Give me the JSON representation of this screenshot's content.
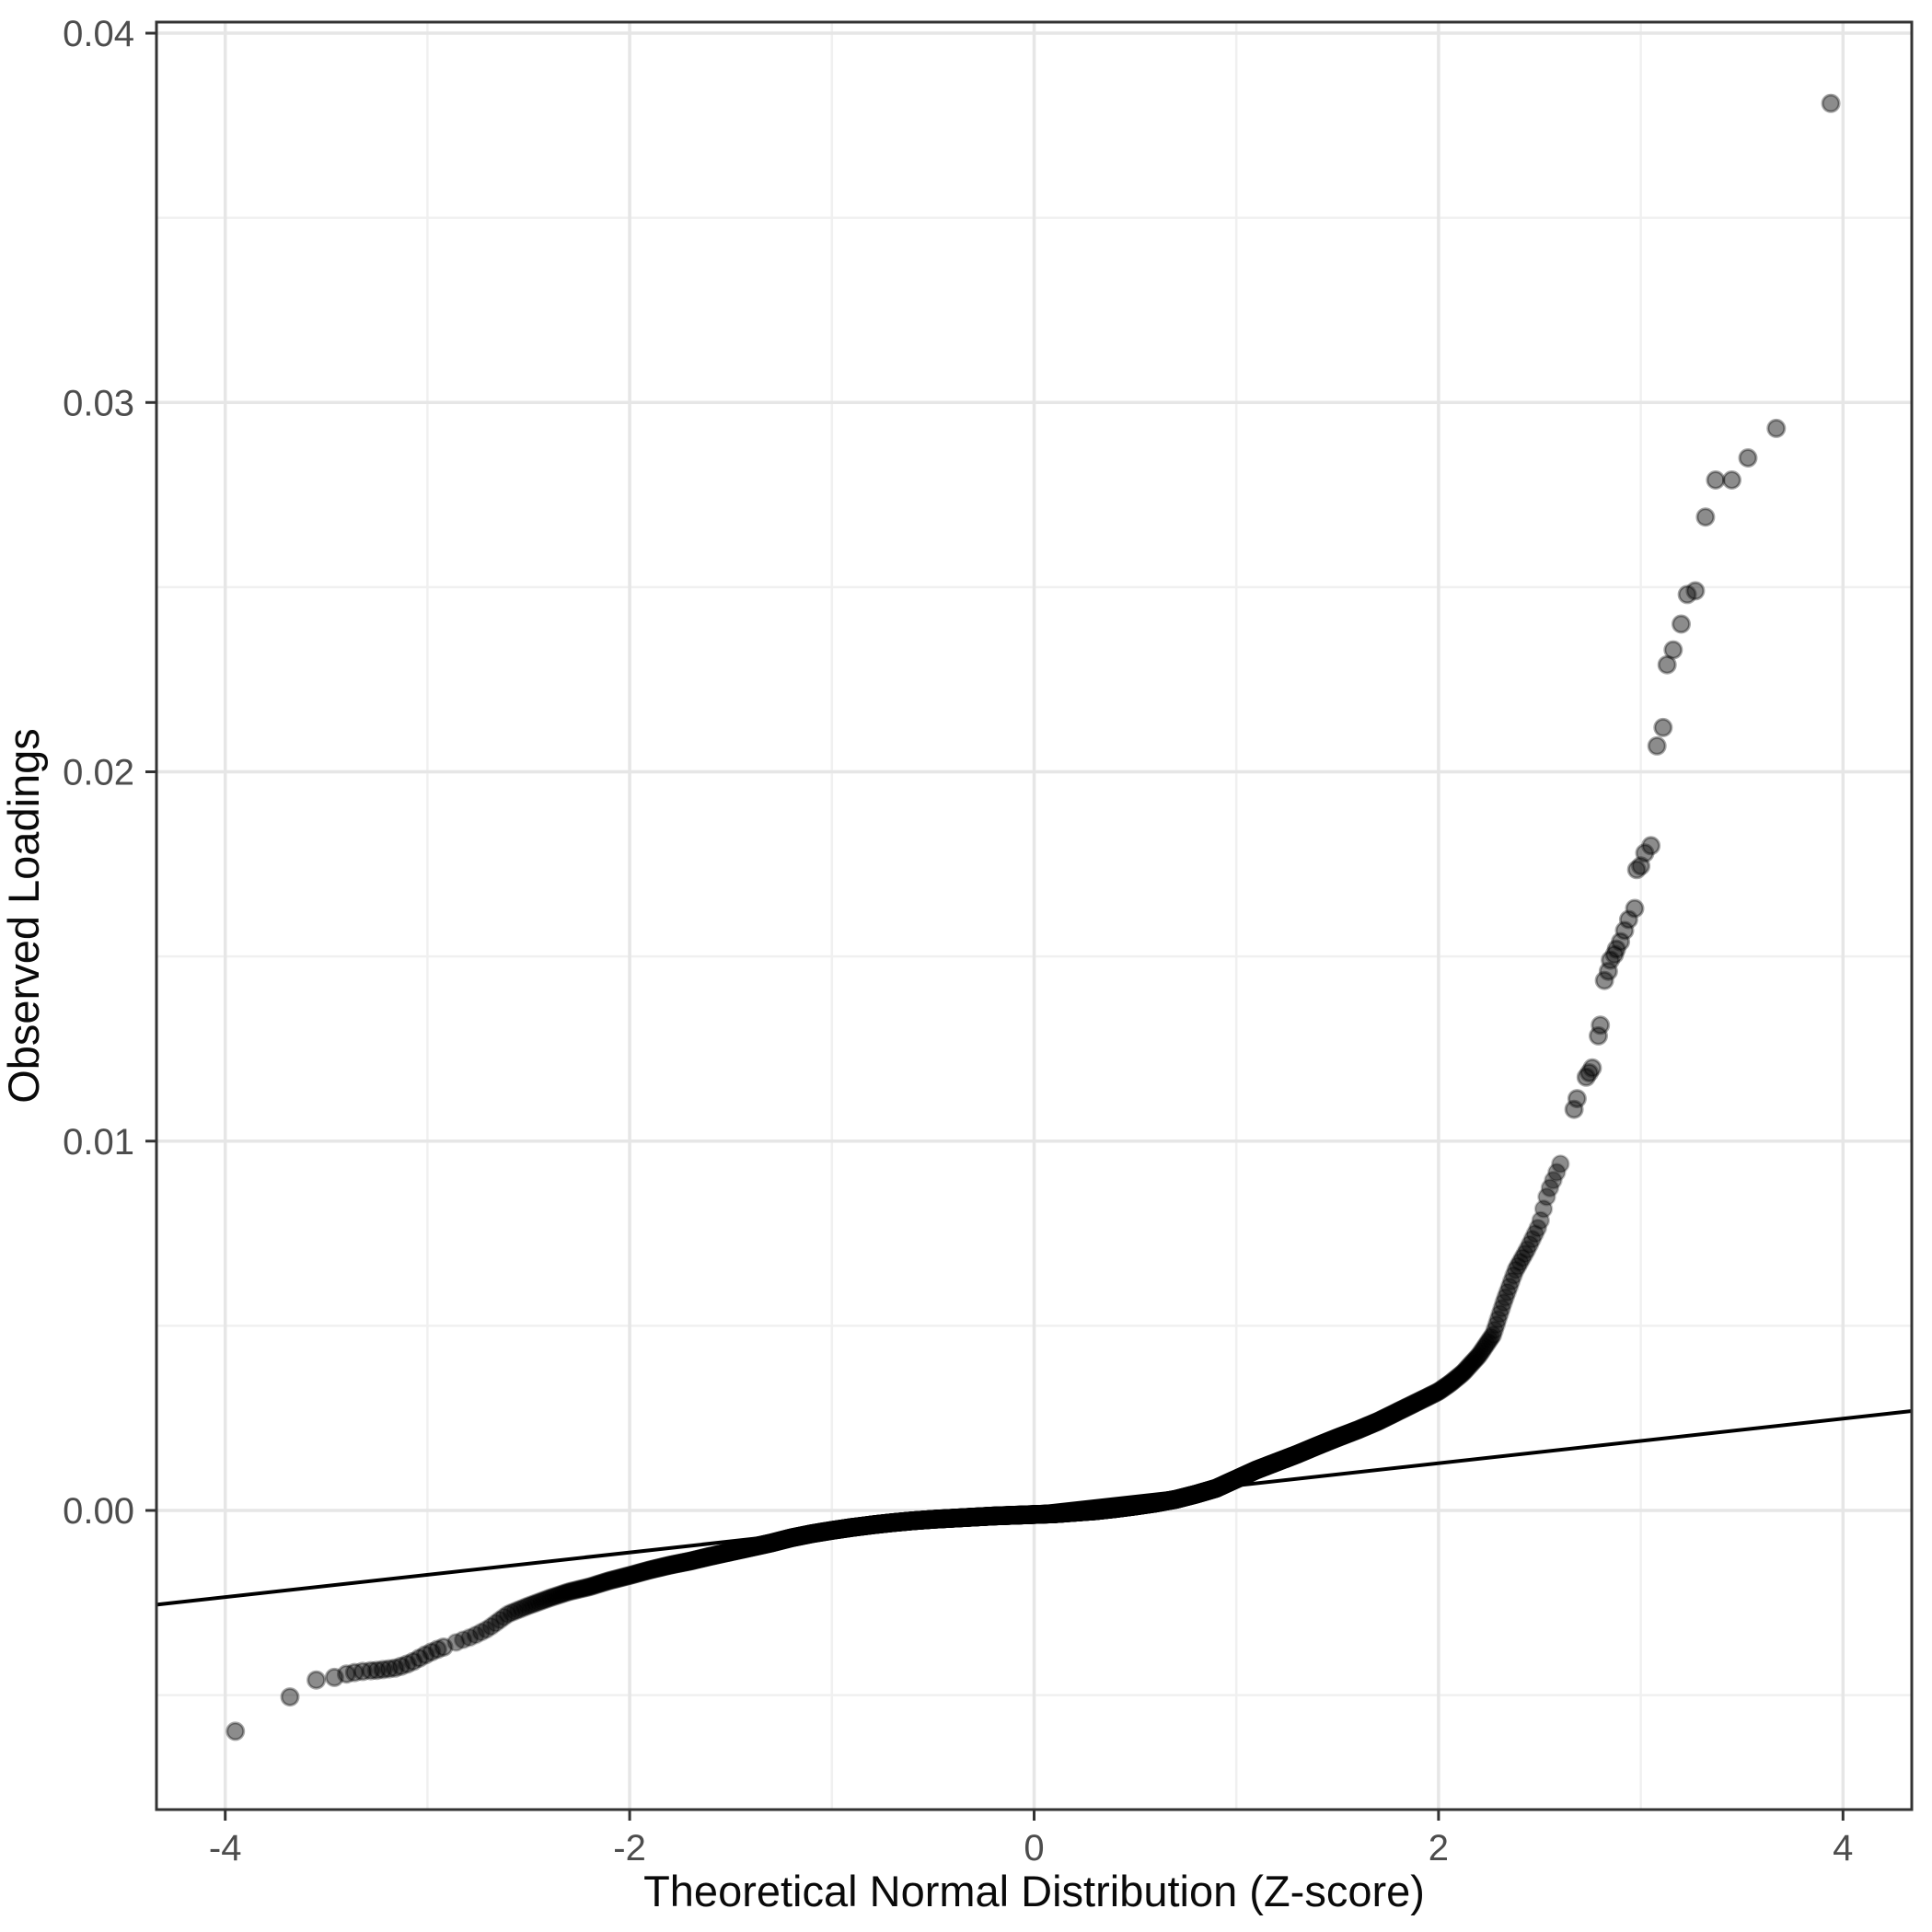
{
  "figure": {
    "kind": "qq-plot",
    "background": "#ffffff"
  },
  "chart_data": {
    "type": "scatter",
    "title": "",
    "xlabel": "Theoretical Normal Distribution (Z-score)",
    "ylabel": "Observed Loadings",
    "xlim": [
      -4.34,
      4.34
    ],
    "ylim": [
      -0.0081,
      0.0403
    ],
    "grid": "major+minor",
    "legend": false,
    "x_ticks": [
      -4,
      -2,
      0,
      2,
      4
    ],
    "x_tick_labels": [
      "-4",
      "-2",
      "0",
      "2",
      "4"
    ],
    "x_minor_ticks": [
      -3,
      -1,
      1,
      3
    ],
    "y_ticks": [
      0,
      0.01,
      0.02,
      0.03,
      0.04
    ],
    "y_tick_labels": [
      "0.00",
      "0.01",
      "0.02",
      "0.03",
      "0.04"
    ],
    "y_minor_ticks": [
      -0.005,
      0.005,
      0.015,
      0.025,
      0.035
    ],
    "reference_line": {
      "intercept": 7e-05,
      "slope": 0.000604,
      "color": "#000000",
      "width": 4
    },
    "qq_curve_anchors": [
      [
        -4.0,
        -0.0062
      ],
      [
        -3.95,
        -0.00598
      ],
      [
        -3.8,
        -0.00545
      ],
      [
        -3.68,
        -0.00505
      ],
      [
        -3.6,
        -0.00472
      ],
      [
        -3.55,
        -0.00459
      ],
      [
        -3.46,
        -0.00452
      ],
      [
        -3.4,
        -0.00443
      ],
      [
        -3.3,
        -0.00436
      ],
      [
        -3.2,
        -0.0043
      ],
      [
        -3.12,
        -0.0042
      ],
      [
        -3.04,
        -0.00399
      ],
      [
        -2.97,
        -0.00381
      ],
      [
        -2.9,
        -0.00368
      ],
      [
        -2.85,
        -0.00355
      ],
      [
        -2.78,
        -0.00342
      ],
      [
        -2.7,
        -0.0032
      ],
      [
        -2.6,
        -0.0028
      ],
      [
        -2.5,
        -0.00258
      ],
      [
        -2.4,
        -0.00238
      ],
      [
        -2.3,
        -0.0022
      ],
      [
        -2.2,
        -0.00207
      ],
      [
        -2.1,
        -0.0019
      ],
      [
        -2.0,
        -0.00176
      ],
      [
        -1.9,
        -0.00161
      ],
      [
        -1.8,
        -0.00148
      ],
      [
        -1.7,
        -0.00137
      ],
      [
        -1.6,
        -0.00124
      ],
      [
        -1.5,
        -0.00112
      ],
      [
        -1.4,
        -0.001
      ],
      [
        -1.3,
        -0.00088
      ],
      [
        -1.2,
        -0.00074
      ],
      [
        -1.1,
        -0.00063
      ],
      [
        -1.0,
        -0.00054
      ],
      [
        -0.9,
        -0.00046
      ],
      [
        -0.8,
        -0.00039
      ],
      [
        -0.7,
        -0.00033
      ],
      [
        -0.6,
        -0.00028
      ],
      [
        -0.5,
        -0.00024
      ],
      [
        -0.4,
        -0.00021
      ],
      [
        -0.3,
        -0.00018
      ],
      [
        -0.2,
        -0.00015
      ],
      [
        -0.1,
        -0.00013
      ],
      [
        0.0,
        -0.00011
      ],
      [
        0.1,
        -9e-05
      ],
      [
        0.2,
        -5e-05
      ],
      [
        0.3,
        -1e-05
      ],
      [
        0.4,
        5e-05
      ],
      [
        0.5,
        0.00012
      ],
      [
        0.6,
        0.0002
      ],
      [
        0.7,
        0.0003
      ],
      [
        0.8,
        0.00044
      ],
      [
        0.9,
        0.0006
      ],
      [
        1.0,
        0.00085
      ],
      [
        1.1,
        0.0011
      ],
      [
        1.2,
        0.00131
      ],
      [
        1.3,
        0.00152
      ],
      [
        1.4,
        0.00175
      ],
      [
        1.5,
        0.00197
      ],
      [
        1.6,
        0.00218
      ],
      [
        1.7,
        0.00241
      ],
      [
        1.8,
        0.00268
      ],
      [
        1.9,
        0.00295
      ],
      [
        2.0,
        0.00322
      ],
      [
        2.06,
        0.00345
      ],
      [
        2.12,
        0.00372
      ],
      [
        2.2,
        0.0042
      ],
      [
        2.27,
        0.00476
      ],
      [
        2.32,
        0.0056
      ],
      [
        2.38,
        0.0065
      ],
      [
        2.44,
        0.00708
      ],
      [
        2.5,
        0.00775
      ],
      [
        2.54,
        0.0086
      ],
      [
        2.58,
        0.0091
      ],
      [
        2.62,
        0.0096
      ]
    ],
    "band": {
      "n_quantile_points": 4000,
      "z_range": [
        -2.88,
        2.62
      ]
    },
    "left_tail_points": [
      [
        -3.95,
        -0.00598
      ],
      [
        -3.68,
        -0.00505
      ],
      [
        -3.55,
        -0.00459
      ],
      [
        -3.46,
        -0.00452
      ],
      [
        -3.4,
        -0.00443
      ],
      [
        -3.36,
        -0.00439
      ],
      [
        -3.32,
        -0.00436
      ],
      [
        -3.28,
        -0.00434
      ],
      [
        -3.25,
        -0.00433
      ],
      [
        -3.22,
        -0.00431
      ],
      [
        -3.19,
        -0.00429
      ],
      [
        -3.16,
        -0.00427
      ],
      [
        -3.13,
        -0.00422
      ],
      [
        -3.1,
        -0.00416
      ],
      [
        -3.07,
        -0.00409
      ],
      [
        -3.04,
        -0.004
      ],
      [
        -3.01,
        -0.00391
      ],
      [
        -2.98,
        -0.00383
      ],
      [
        -2.95,
        -0.00376
      ],
      [
        -2.92,
        -0.0037
      ]
    ],
    "right_tail_points": [
      [
        2.67,
        0.01086
      ],
      [
        2.685,
        0.01115
      ],
      [
        2.73,
        0.01173
      ],
      [
        2.745,
        0.01185
      ],
      [
        2.76,
        0.01198
      ],
      [
        2.79,
        0.01285
      ],
      [
        2.8,
        0.01314
      ],
      [
        2.82,
        0.01435
      ],
      [
        2.84,
        0.0146
      ],
      [
        2.85,
        0.0149
      ],
      [
        2.87,
        0.01505
      ],
      [
        2.88,
        0.0152
      ],
      [
        2.9,
        0.0154
      ],
      [
        2.92,
        0.0157
      ],
      [
        2.94,
        0.016
      ],
      [
        2.97,
        0.0163
      ],
      [
        2.98,
        0.01735
      ],
      [
        3.0,
        0.01745
      ],
      [
        3.02,
        0.0178
      ],
      [
        3.05,
        0.018
      ],
      [
        3.08,
        0.0207
      ],
      [
        3.11,
        0.0212
      ],
      [
        3.13,
        0.0229
      ],
      [
        3.16,
        0.0233
      ],
      [
        3.2,
        0.024
      ],
      [
        3.23,
        0.0248
      ],
      [
        3.27,
        0.0249
      ],
      [
        3.32,
        0.0269
      ],
      [
        3.37,
        0.0279
      ],
      [
        3.45,
        0.0279
      ],
      [
        3.53,
        0.0285
      ],
      [
        3.67,
        0.0293
      ],
      [
        3.94,
        0.0381
      ]
    ],
    "point_style": {
      "radius": 9,
      "fill": "#000000",
      "fill_opacity": 0.45,
      "stroke_opacity": 0.22
    },
    "colors": {
      "background": "#ffffff",
      "panel_background": "#ffffff",
      "grid_major": "#e6e6e6",
      "grid_minor": "#f0f0f0",
      "panel_border": "#333333",
      "tick_mark": "#333333",
      "tick_label": "#4d4d4d",
      "axis_title": "#0a0a0a"
    }
  }
}
